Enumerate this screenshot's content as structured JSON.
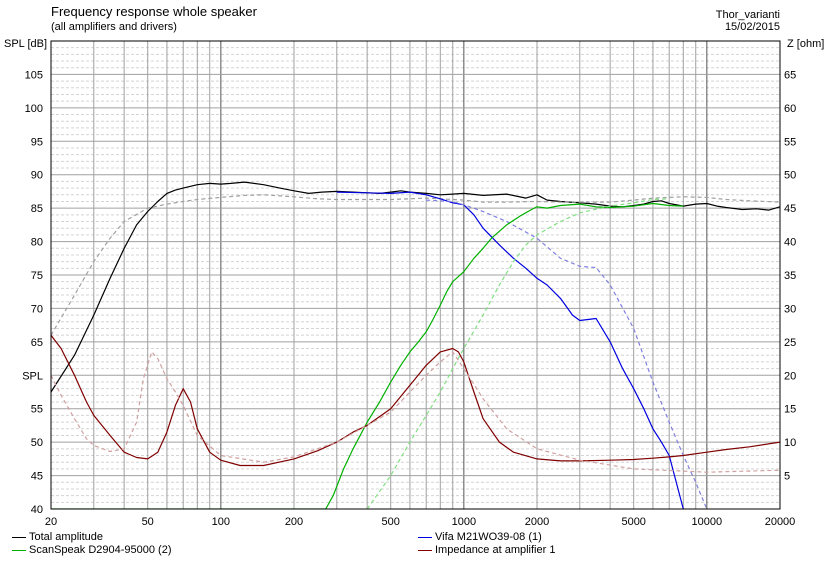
{
  "title": "Frequency response whole speaker",
  "subtitle": "(all amplifiers and drivers)",
  "author": "Thor_varianti",
  "date": "15/02/2015",
  "chart_data": {
    "type": "line",
    "xlabel": "",
    "ylabel_left": "SPL [dB]",
    "ylabel_right": "Z [ohm]",
    "xscale": "log",
    "xlim": [
      20,
      20000
    ],
    "ylim_left": [
      40,
      110
    ],
    "ylim_right": [
      0,
      70
    ],
    "grid": true,
    "x_ticks": [
      20,
      50,
      100,
      200,
      500,
      1000,
      2000,
      5000,
      10000,
      20000
    ],
    "x_tick_labels": [
      "20",
      "50",
      "100",
      "200",
      "500",
      "1000",
      "2000",
      "5000",
      "10000",
      "20000"
    ],
    "y_left_ticks": [
      40,
      45,
      50,
      55,
      60,
      65,
      70,
      75,
      80,
      85,
      90,
      95,
      100,
      105
    ],
    "y_left_tick_labels": [
      "40",
      "45",
      "50",
      "55",
      "SPL",
      "65",
      "70",
      "75",
      "80",
      "85",
      "90",
      "95",
      "100",
      "105"
    ],
    "y_right_ticks": [
      5,
      10,
      15,
      20,
      25,
      30,
      35,
      40,
      45,
      50,
      55,
      60,
      65
    ],
    "y_right_tick_labels": [
      "5",
      "10",
      "15",
      "20",
      "25",
      "30",
      "35",
      "40",
      "45",
      "50",
      "55",
      "60",
      "65"
    ],
    "legend": [
      {
        "label": "Total amplitude",
        "color": "#000000"
      },
      {
        "label": "ScanSpeak D2904-95000 (2)",
        "color": "#00b000"
      },
      {
        "label": "Vifa M21WO39-08 (1)",
        "color": "#0000e0"
      },
      {
        "label": "Impedance at amplifier 1",
        "color": "#800000"
      }
    ],
    "series": [
      {
        "key": "total",
        "axis": "left",
        "color": "#000000",
        "style": "solid",
        "x": [
          20,
          25,
          30,
          35,
          40,
          45,
          50,
          55,
          60,
          65,
          70,
          80,
          90,
          100,
          110,
          125,
          150,
          175,
          200,
          230,
          260,
          300,
          350,
          400,
          450,
          500,
          550,
          600,
          700,
          800,
          900,
          1000,
          1200,
          1500,
          1800,
          2000,
          2200,
          2500,
          3000,
          3500,
          4000,
          4500,
          5000,
          5500,
          6000,
          6500,
          7000,
          8000,
          9000,
          10000,
          11000,
          12000,
          14000,
          16000,
          18000,
          20000
        ],
        "y": [
          57.5,
          63,
          69,
          74.5,
          79,
          82.5,
          84.5,
          86,
          87.2,
          87.7,
          88,
          88.5,
          88.7,
          88.6,
          88.7,
          88.9,
          88.5,
          88,
          87.6,
          87.2,
          87.4,
          87.5,
          87.4,
          87.3,
          87.2,
          87.4,
          87.6,
          87.4,
          87.2,
          87,
          87.1,
          87.2,
          86.9,
          87.1,
          86.5,
          87,
          86.2,
          86,
          85.8,
          85.6,
          85.3,
          85.2,
          85.4,
          85.6,
          86,
          86.1,
          85.7,
          85.3,
          85.6,
          85.7,
          85.3,
          85.1,
          84.8,
          84.9,
          84.7,
          85.2
        ]
      },
      {
        "key": "total_dashed",
        "axis": "left",
        "color": "#a0a0a0",
        "style": "dashed",
        "x": [
          20,
          25,
          30,
          35,
          40,
          50,
          60,
          70,
          80,
          100,
          125,
          150,
          200,
          250,
          300,
          400,
          500,
          600,
          700,
          800,
          1000,
          1200,
          1500,
          2000,
          2500,
          3000,
          4000,
          5000,
          6000,
          7000,
          8000,
          10000,
          12000,
          15000,
          20000
        ],
        "y": [
          66,
          72,
          77,
          80.5,
          83,
          85,
          85.6,
          86,
          86.3,
          86.6,
          86.9,
          87,
          86.7,
          86.4,
          86.3,
          86.3,
          86.3,
          86.4,
          86.5,
          86.4,
          86.2,
          85.9,
          85.9,
          86,
          85.9,
          85.9,
          85.9,
          86.2,
          86.5,
          86.6,
          86.7,
          86.6,
          86.3,
          86.1,
          85.9
        ]
      },
      {
        "key": "woofer",
        "axis": "left",
        "color": "#0000e0",
        "style": "solid",
        "x": [
          300,
          400,
          500,
          600,
          700,
          800,
          900,
          1000,
          1100,
          1200,
          1400,
          1600,
          1800,
          2000,
          2200,
          2500,
          2800,
          3000,
          3500,
          4000,
          4500,
          5000,
          5500,
          6000,
          6500,
          7000,
          8000
        ],
        "y": [
          87.4,
          87.3,
          87.2,
          87.4,
          87,
          86.4,
          85.8,
          85.5,
          84,
          82,
          79.5,
          77.5,
          76,
          74.5,
          73.5,
          71.5,
          69,
          68.2,
          68.5,
          65,
          61,
          58,
          55,
          52,
          50,
          48,
          40
        ]
      },
      {
        "key": "woofer_dashed",
        "axis": "left",
        "color": "#8080e0",
        "style": "dashed",
        "x": [
          700,
          900,
          1000,
          1200,
          1500,
          2000,
          2500,
          3000,
          3500,
          4000,
          5000,
          6000,
          7000,
          8000,
          9000,
          10000
        ],
        "y": [
          86.2,
          86,
          85.5,
          84.5,
          83,
          80.5,
          77.5,
          76.3,
          76.1,
          73.5,
          67,
          59,
          53,
          48,
          44,
          40
        ]
      },
      {
        "key": "tweeter",
        "axis": "left",
        "color": "#00b000",
        "style": "solid",
        "x": [
          20,
          270,
          290,
          320,
          350,
          400,
          450,
          500,
          550,
          600,
          650,
          700,
          750,
          800,
          850,
          900,
          1000,
          1100,
          1200,
          1300,
          1500,
          1700,
          1900,
          2000,
          2200,
          2500,
          3000,
          3500,
          4000,
          5000,
          6000,
          7000,
          8000
        ],
        "y": [
          40,
          40,
          42,
          46,
          49,
          53,
          56,
          59,
          61.5,
          63.5,
          65,
          66.5,
          68.5,
          70.5,
          72.5,
          74,
          75.5,
          77.5,
          79,
          80.5,
          82.5,
          83.8,
          84.8,
          85.2,
          85,
          85.4,
          85.6,
          85.2,
          85.1,
          85.3,
          85.7,
          85.4,
          85.3
        ]
      },
      {
        "key": "tweeter_dashed",
        "axis": "left",
        "color": "#80e080",
        "style": "dashed",
        "x": [
          400,
          500,
          600,
          700,
          800,
          900,
          1000,
          1200,
          1400,
          1600,
          1800,
          2000,
          2500,
          3000,
          4000,
          5000,
          6000,
          7000
        ],
        "y": [
          40,
          45,
          50,
          54,
          57.5,
          61,
          64,
          69,
          73.5,
          77,
          79.5,
          81,
          83,
          84.3,
          85.3,
          85.8,
          86.3,
          86.4
        ]
      },
      {
        "key": "impedance",
        "axis": "right",
        "color": "#800000",
        "style": "solid",
        "x": [
          20,
          22,
          25,
          28,
          30,
          35,
          40,
          45,
          50,
          55,
          60,
          65,
          70,
          75,
          80,
          90,
          100,
          120,
          150,
          200,
          250,
          300,
          350,
          400,
          500,
          600,
          700,
          800,
          900,
          950,
          1000,
          1100,
          1200,
          1400,
          1600,
          2000,
          2500,
          3000,
          4000,
          5000,
          6000,
          7000,
          8000,
          10000,
          12000,
          15000,
          20000
        ],
        "y": [
          26,
          24,
          20,
          16,
          14,
          11,
          8.5,
          7.7,
          7.5,
          8.5,
          11.5,
          15.5,
          18,
          16,
          12,
          8.5,
          7.3,
          6.5,
          6.5,
          7.5,
          8.7,
          10,
          11.5,
          12.5,
          15,
          18.5,
          21.5,
          23.5,
          24,
          23.5,
          22,
          17.5,
          13.5,
          10,
          8.5,
          7.5,
          7.2,
          7.2,
          7.3,
          7.4,
          7.6,
          7.8,
          8,
          8.5,
          8.9,
          9.3,
          10
        ]
      },
      {
        "key": "impedance_dashed",
        "axis": "right",
        "color": "#d0a0a0",
        "style": "dashed",
        "x": [
          20,
          22,
          25,
          28,
          30,
          35,
          40,
          45,
          48,
          52,
          55,
          60,
          65,
          70,
          80,
          100,
          150,
          200,
          300,
          400,
          500,
          600,
          700,
          800,
          900,
          1000,
          1200,
          1500,
          2000,
          3000,
          5000,
          10000,
          20000
        ],
        "y": [
          20,
          17,
          13.5,
          10.5,
          9.5,
          8.6,
          9,
          13,
          19.5,
          23.5,
          22.5,
          19.5,
          17.5,
          15.5,
          11,
          8,
          7,
          7.8,
          10,
          12.5,
          14.5,
          17.5,
          20,
          22,
          23.5,
          21,
          16.5,
          12,
          9,
          7.3,
          6,
          5.5,
          5.8
        ]
      }
    ]
  }
}
